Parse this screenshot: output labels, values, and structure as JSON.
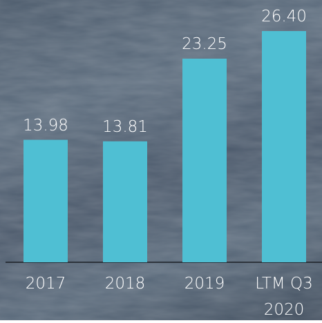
{
  "chart_data": {
    "type": "bar",
    "categories": [
      "2017",
      "2018",
      "2019",
      "LTM Q3 2020"
    ],
    "values": [
      13.98,
      13.81,
      23.25,
      26.4
    ],
    "value_labels": [
      "13.98",
      "13.81",
      "23.25",
      "26.40"
    ],
    "color": "#4fbfd3"
  }
}
